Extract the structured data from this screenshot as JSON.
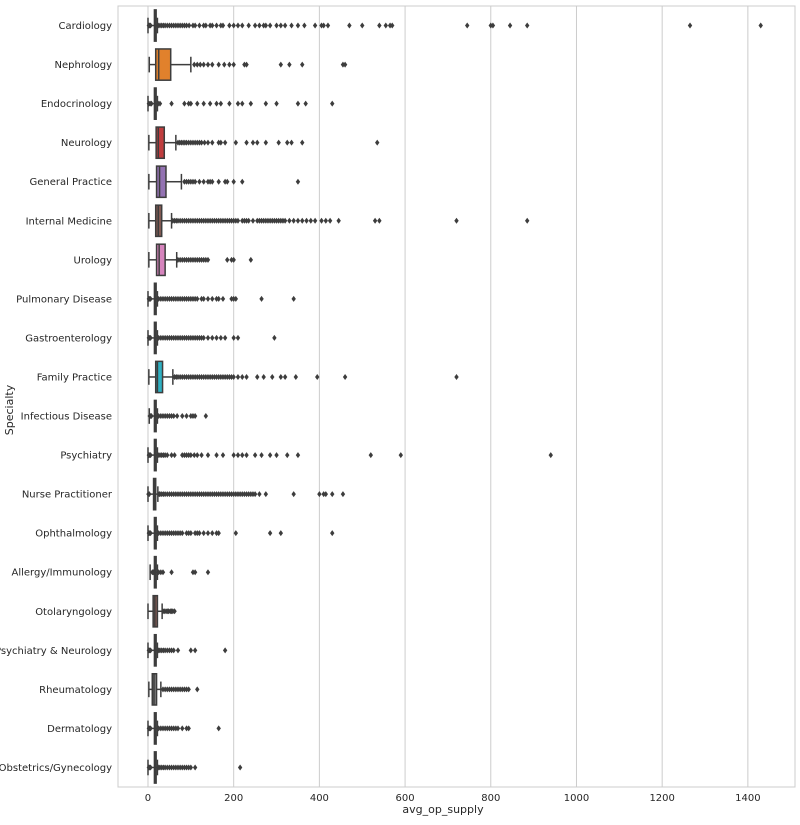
{
  "chart_data": {
    "type": "boxplot",
    "xlabel": "avg_op_supply",
    "ylabel": "Specialty",
    "xlim": [
      -70,
      1510
    ],
    "xticks": [
      0,
      200,
      400,
      600,
      800,
      1000,
      1200,
      1400
    ],
    "grid": "vertical",
    "categories": [
      "Cardiology",
      "Nephrology",
      "Endocrinology",
      "Neurology",
      "General Practice",
      "Internal Medicine",
      "Urology",
      "Pulmonary Disease",
      "Gastroenterology",
      "Family Practice",
      "Infectious Disease",
      "Psychiatry",
      "Nurse Practitioner",
      "Ophthalmology",
      "Allergy/Immunology",
      "Otolaryngology",
      "Psychiatry & Neurology",
      "Rheumatology",
      "Dermatology",
      "Obstetrics/Gynecology"
    ],
    "colors": [
      "#3274a1",
      "#e1812c",
      "#3a923a",
      "#c03d3e",
      "#9372b2",
      "#845b53",
      "#d684bd",
      "#7f7f7f",
      "#a9aa35",
      "#2eb0c2",
      "#3274a1",
      "#e1812c",
      "#3a923a",
      "#c03d3e",
      "#9372b2",
      "#845b53",
      "#d684bd",
      "#7f7f7f",
      "#a9aa35",
      "#2eb0c2"
    ],
    "boxes": [
      {
        "whislo": 0,
        "q1": 15,
        "med": 17,
        "q3": 19,
        "whishi": 22,
        "fliers": [
          2,
          4,
          6,
          24,
          28,
          32,
          36,
          40,
          45,
          50,
          55,
          60,
          65,
          70,
          75,
          80,
          85,
          90,
          96,
          105,
          110,
          120,
          130,
          135,
          145,
          150,
          160,
          170,
          175,
          190,
          200,
          210,
          220,
          235,
          250,
          260,
          270,
          275,
          285,
          300,
          310,
          320,
          335,
          350,
          365,
          390,
          405,
          410,
          420,
          470,
          500,
          540,
          555,
          565,
          570,
          745,
          800,
          805,
          845,
          885,
          1265,
          1430
        ]
      },
      {
        "whislo": 3,
        "q1": 18,
        "med": 25,
        "q3": 53,
        "whishi": 100,
        "fliers": [
          108,
          115,
          122,
          130,
          140,
          150,
          165,
          178,
          190,
          200,
          225,
          230,
          310,
          330,
          360,
          455,
          460
        ]
      },
      {
        "whislo": 0,
        "q1": 15,
        "med": 17,
        "q3": 19,
        "whishi": 22,
        "fliers": [
          2,
          5,
          8,
          24,
          28,
          55,
          85,
          95,
          100,
          115,
          130,
          145,
          160,
          170,
          190,
          210,
          220,
          240,
          275,
          300,
          350,
          368,
          430
        ]
      },
      {
        "whislo": 2,
        "q1": 19,
        "med": 24,
        "q3": 38,
        "whishi": 65,
        "fliers": [
          70,
          74,
          78,
          82,
          86,
          90,
          95,
          100,
          105,
          110,
          115,
          120,
          125,
          132,
          140,
          150,
          165,
          170,
          180,
          205,
          230,
          245,
          255,
          275,
          305,
          325,
          335,
          360,
          535
        ]
      },
      {
        "whislo": 2,
        "q1": 20,
        "med": 27,
        "q3": 42,
        "whishi": 78,
        "fliers": [
          85,
          90,
          95,
          100,
          105,
          110,
          120,
          130,
          140,
          145,
          150,
          165,
          180,
          185,
          200,
          220,
          350
        ]
      },
      {
        "whislo": 2,
        "q1": 18,
        "med": 24,
        "q3": 32,
        "whishi": 55,
        "fliers": [
          58,
          62,
          66,
          70,
          75,
          80,
          85,
          90,
          95,
          100,
          105,
          110,
          115,
          120,
          125,
          130,
          135,
          140,
          145,
          150,
          155,
          160,
          165,
          170,
          175,
          180,
          185,
          190,
          195,
          200,
          205,
          210,
          220,
          225,
          230,
          235,
          245,
          255,
          260,
          265,
          270,
          275,
          280,
          285,
          290,
          295,
          300,
          305,
          310,
          315,
          320,
          330,
          340,
          350,
          360,
          370,
          380,
          390,
          405,
          415,
          425,
          445,
          530,
          540,
          720,
          885
        ]
      },
      {
        "whislo": 2,
        "q1": 20,
        "med": 26,
        "q3": 40,
        "whishi": 67,
        "fliers": [
          70,
          75,
          80,
          85,
          90,
          95,
          100,
          105,
          110,
          115,
          120,
          125,
          130,
          135,
          140,
          185,
          195,
          200,
          240
        ]
      },
      {
        "whislo": 0,
        "q1": 15,
        "med": 17,
        "q3": 19,
        "whishi": 22,
        "fliers": [
          2,
          4,
          6,
          25,
          30,
          35,
          40,
          45,
          50,
          55,
          60,
          65,
          70,
          75,
          80,
          85,
          90,
          95,
          100,
          105,
          110,
          115,
          125,
          130,
          140,
          150,
          160,
          165,
          175,
          195,
          200,
          205,
          265,
          340
        ]
      },
      {
        "whislo": 0,
        "q1": 15,
        "med": 17,
        "q3": 19,
        "whishi": 22,
        "fliers": [
          2,
          4,
          6,
          25,
          30,
          35,
          40,
          45,
          50,
          55,
          60,
          65,
          70,
          75,
          80,
          85,
          90,
          95,
          100,
          105,
          110,
          115,
          120,
          125,
          130,
          140,
          150,
          160,
          170,
          180,
          200,
          210,
          295
        ]
      },
      {
        "whislo": 2,
        "q1": 18,
        "med": 22,
        "q3": 34,
        "whishi": 58,
        "fliers": [
          62,
          66,
          70,
          75,
          80,
          85,
          90,
          95,
          100,
          105,
          110,
          115,
          120,
          125,
          130,
          135,
          140,
          145,
          150,
          155,
          160,
          165,
          170,
          175,
          180,
          185,
          190,
          195,
          200,
          210,
          220,
          230,
          255,
          270,
          290,
          310,
          320,
          345,
          395,
          460,
          720
        ]
      },
      {
        "whislo": 3,
        "q1": 15,
        "med": 17,
        "q3": 19,
        "whishi": 22,
        "fliers": [
          4,
          6,
          8,
          25,
          30,
          35,
          40,
          45,
          50,
          55,
          60,
          68,
          80,
          90,
          100,
          105,
          110,
          135
        ]
      },
      {
        "whislo": 0,
        "q1": 15,
        "med": 17,
        "q3": 19,
        "whishi": 22,
        "fliers": [
          2,
          4,
          6,
          24,
          28,
          32,
          36,
          40,
          45,
          55,
          62,
          80,
          85,
          90,
          95,
          100,
          108,
          115,
          125,
          140,
          160,
          175,
          200,
          210,
          220,
          230,
          250,
          265,
          285,
          300,
          325,
          350,
          520,
          590,
          940
        ]
      },
      {
        "whislo": 0,
        "q1": 13,
        "med": 15,
        "q3": 18,
        "whishi": 23,
        "fliers": [
          1,
          3,
          26,
          28,
          32,
          36,
          40,
          45,
          50,
          55,
          60,
          65,
          70,
          75,
          80,
          85,
          90,
          95,
          100,
          105,
          110,
          115,
          120,
          125,
          130,
          135,
          140,
          145,
          150,
          155,
          160,
          165,
          170,
          175,
          180,
          185,
          190,
          195,
          200,
          205,
          210,
          215,
          220,
          225,
          230,
          235,
          240,
          245,
          250,
          260,
          275,
          340,
          400,
          410,
          415,
          430,
          455
        ]
      },
      {
        "whislo": 0,
        "q1": 15,
        "med": 17,
        "q3": 19,
        "whishi": 22,
        "fliers": [
          2,
          4,
          6,
          25,
          30,
          35,
          40,
          45,
          50,
          55,
          60,
          65,
          70,
          75,
          80,
          90,
          95,
          100,
          110,
          115,
          120,
          130,
          140,
          150,
          160,
          165,
          205,
          285,
          310,
          430
        ]
      },
      {
        "whislo": 5,
        "q1": 15,
        "med": 17,
        "q3": 19,
        "whishi": 22,
        "fliers": [
          10,
          12,
          14,
          25,
          30,
          35,
          55,
          105,
          110,
          140
        ]
      },
      {
        "whislo": 0,
        "q1": 12,
        "med": 16,
        "q3": 22,
        "whishi": 33,
        "fliers": [
          35,
          38,
          42,
          45,
          48,
          52,
          55,
          58,
          62
        ]
      },
      {
        "whislo": 0,
        "q1": 15,
        "med": 17,
        "q3": 19,
        "whishi": 22,
        "fliers": [
          2,
          4,
          6,
          25,
          28,
          32,
          36,
          40,
          45,
          50,
          55,
          60,
          70,
          100,
          110,
          180
        ]
      },
      {
        "whislo": 2,
        "q1": 10,
        "med": 14,
        "q3": 20,
        "whishi": 30,
        "fliers": [
          35,
          40,
          45,
          50,
          55,
          60,
          65,
          70,
          75,
          80,
          85,
          90,
          95,
          115
        ]
      },
      {
        "whislo": 0,
        "q1": 15,
        "med": 17,
        "q3": 19,
        "whishi": 22,
        "fliers": [
          2,
          4,
          6,
          25,
          30,
          35,
          40,
          45,
          50,
          55,
          60,
          65,
          70,
          80,
          90,
          95,
          165
        ]
      },
      {
        "whislo": 0,
        "q1": 15,
        "med": 17,
        "q3": 19,
        "whishi": 22,
        "fliers": [
          2,
          4,
          6,
          25,
          28,
          32,
          36,
          40,
          45,
          50,
          55,
          60,
          65,
          70,
          75,
          80,
          85,
          90,
          95,
          100,
          110,
          215
        ]
      }
    ]
  }
}
